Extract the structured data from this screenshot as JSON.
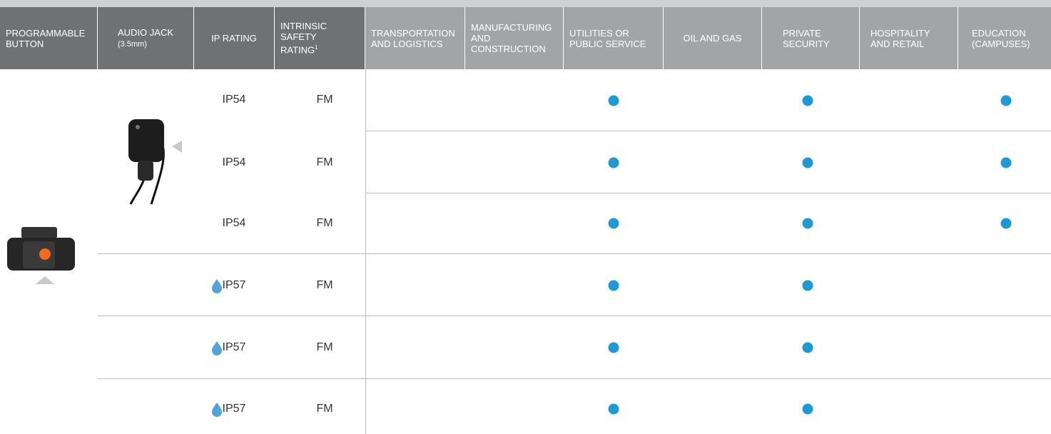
{
  "header": {
    "columns": [
      "PROGRAMMABLE BUTTON",
      "AUDIO JACK",
      "IP RATING",
      "INTRINSIC SAFETY RATING",
      "TRANSPORTATION AND LOGISTICS",
      "MANUFACTURING AND CONSTRUCTION",
      "UTILITIES OR PUBLIC SERVICE",
      "OIL AND GAS",
      "PRIVATE SECURITY",
      "HOSPITALITY AND RETAIL",
      "EDUCATION (CAMPUSES)"
    ],
    "audio_jack_note": "(3.5mm)",
    "safety_footnote": "1"
  },
  "rows": [
    {
      "ip": "IP54",
      "safety": "FM"
    },
    {
      "ip": "IP54",
      "safety": "FM"
    },
    {
      "ip": "IP54",
      "safety": "FM"
    },
    {
      "ip": "IP57",
      "safety": "FM"
    },
    {
      "ip": "IP57",
      "safety": "FM"
    },
    {
      "ip": "IP57",
      "safety": "FM"
    }
  ]
}
